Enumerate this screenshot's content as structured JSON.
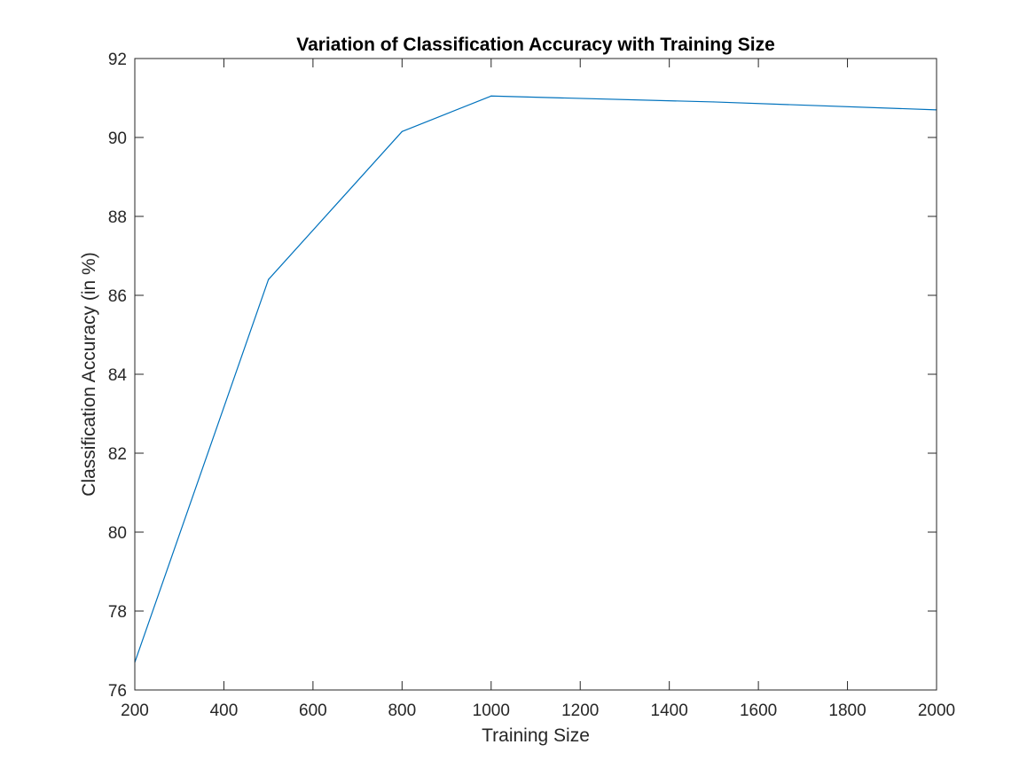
{
  "chart_data": {
    "type": "line",
    "title": "Variation of Classification Accuracy with Training Size",
    "xlabel": "Training Size",
    "ylabel": "Classification Accuracy (in %)",
    "xlim": [
      200,
      2000
    ],
    "ylim": [
      76,
      92
    ],
    "xticks": [
      200,
      400,
      600,
      800,
      1000,
      1200,
      1400,
      1600,
      1800,
      2000
    ],
    "yticks": [
      76,
      78,
      80,
      82,
      84,
      86,
      88,
      90,
      92
    ],
    "grid": false,
    "box": true,
    "series": [
      {
        "color": "#0072bd",
        "x": [
          200,
          500,
          800,
          1000,
          1500,
          2000
        ],
        "y": [
          76.7,
          86.4,
          90.15,
          91.05,
          90.9,
          90.7
        ]
      }
    ]
  }
}
